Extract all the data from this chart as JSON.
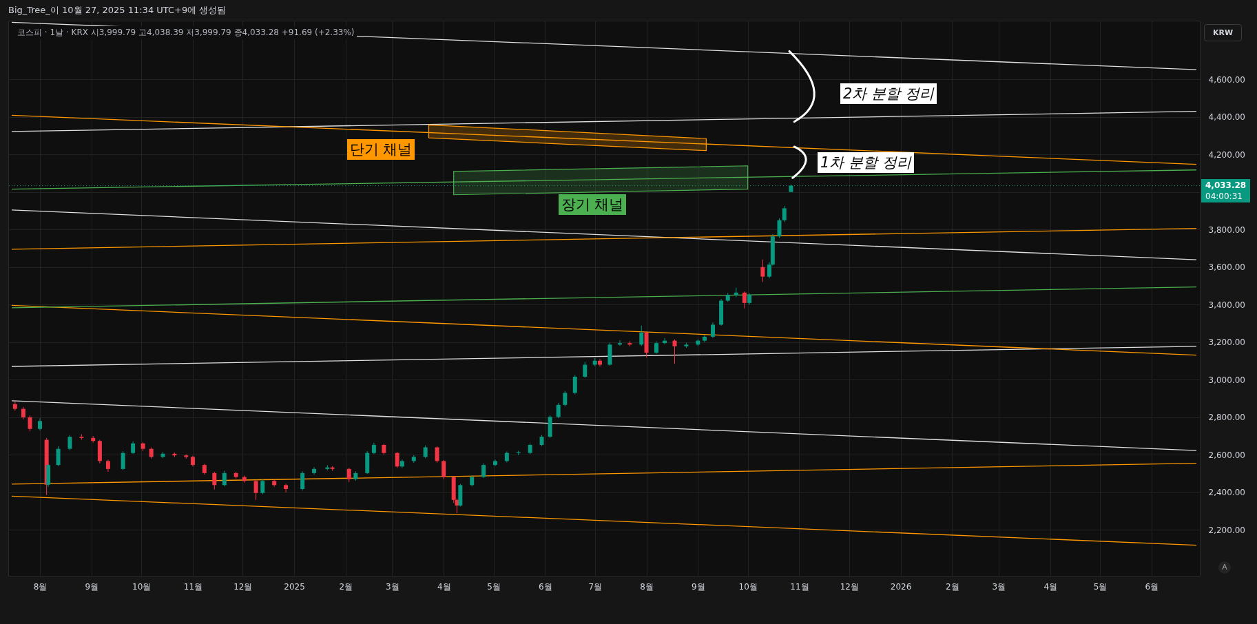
{
  "chart_data": {
    "type": "candlestick",
    "title": "코스피 · 1날 · KRX 시3,999.79 고4,038.39 저3,999.79 종4,033.28 +91.69 (+2.33%)",
    "annotations": [
      "Big_Tree_이 10월 27, 2025 11:34 UTC+9에 생성됨",
      "KRW",
      "A",
      "04:00:31",
      "2차 분할 정리",
      "1차 분할 정리",
      "단기 채널",
      "장기 채널"
    ],
    "x": [
      "2024-07-17",
      "2024-07-22",
      "2024-07-26",
      "2024-08-01",
      "2024-08-05",
      "2024-08-06",
      "2024-08-12",
      "2024-08-19",
      "2024-08-26",
      "2024-09-02",
      "2024-09-06",
      "2024-09-11",
      "2024-09-20",
      "2024-09-26",
      "2024-10-02",
      "2024-10-07",
      "2024-10-14",
      "2024-10-21",
      "2024-10-28",
      "2024-11-01",
      "2024-11-08",
      "2024-11-14",
      "2024-11-20",
      "2024-11-27",
      "2024-12-02",
      "2024-12-09",
      "2024-12-13",
      "2024-12-20",
      "2024-12-27",
      "2025-01-06",
      "2025-01-13",
      "2025-01-21",
      "2025-01-24",
      "2025-02-03",
      "2025-02-07",
      "2025-02-14",
      "2025-02-18",
      "2025-02-24",
      "2025-03-04",
      "2025-03-07",
      "2025-03-14",
      "2025-03-21",
      "2025-03-28",
      "2025-04-01",
      "2025-04-07",
      "2025-04-09",
      "2025-04-11",
      "2025-04-18",
      "2025-04-25",
      "2025-05-02",
      "2025-05-09",
      "2025-05-16",
      "2025-05-23",
      "2025-05-30",
      "2025-06-04",
      "2025-06-09",
      "2025-06-13",
      "2025-06-19",
      "2025-06-25",
      "2025-07-01",
      "2025-07-04",
      "2025-07-10",
      "2025-07-16",
      "2025-07-22",
      "2025-07-29",
      "2025-08-01",
      "2025-08-07",
      "2025-08-12",
      "2025-08-18",
      "2025-08-25",
      "2025-09-01",
      "2025-09-05",
      "2025-09-10",
      "2025-09-15",
      "2025-09-19",
      "2025-09-24",
      "2025-09-29",
      "2025-10-02",
      "2025-10-10",
      "2025-10-14",
      "2025-10-16",
      "2025-10-20",
      "2025-10-23",
      "2025-10-27"
    ],
    "ohlc": [
      [
        2870,
        2885,
        2835,
        2845
      ],
      [
        2845,
        2855,
        2790,
        2800
      ],
      [
        2800,
        2810,
        2725,
        2738
      ],
      [
        2738,
        2795,
        2730,
        2780
      ],
      [
        2680,
        2690,
        2386,
        2441
      ],
      [
        2441,
        2555,
        2430,
        2546
      ],
      [
        2546,
        2645,
        2540,
        2632
      ],
      [
        2632,
        2705,
        2625,
        2696
      ],
      [
        2696,
        2710,
        2680,
        2690
      ],
      [
        2690,
        2700,
        2665,
        2674
      ],
      [
        2674,
        2680,
        2555,
        2567
      ],
      [
        2567,
        2575,
        2510,
        2525
      ],
      [
        2525,
        2620,
        2518,
        2610
      ],
      [
        2610,
        2672,
        2605,
        2661
      ],
      [
        2661,
        2668,
        2620,
        2632
      ],
      [
        2632,
        2640,
        2580,
        2589
      ],
      [
        2589,
        2615,
        2582,
        2606
      ],
      [
        2606,
        2612,
        2588,
        2597
      ],
      [
        2597,
        2603,
        2580,
        2589
      ],
      [
        2589,
        2595,
        2538,
        2546
      ],
      [
        2546,
        2552,
        2495,
        2503
      ],
      [
        2503,
        2510,
        2416,
        2439
      ],
      [
        2439,
        2515,
        2432,
        2503
      ],
      [
        2503,
        2510,
        2474,
        2482
      ],
      [
        2482,
        2490,
        2452,
        2461
      ],
      [
        2461,
        2466,
        2360,
        2397
      ],
      [
        2397,
        2470,
        2390,
        2461
      ],
      [
        2461,
        2468,
        2430,
        2439
      ],
      [
        2439,
        2446,
        2400,
        2418
      ],
      [
        2418,
        2512,
        2410,
        2503
      ],
      [
        2503,
        2535,
        2495,
        2525
      ],
      [
        2525,
        2545,
        2518,
        2533
      ],
      [
        2533,
        2540,
        2515,
        2525
      ],
      [
        2525,
        2530,
        2455,
        2470
      ],
      [
        2470,
        2512,
        2462,
        2503
      ],
      [
        2503,
        2620,
        2498,
        2610
      ],
      [
        2610,
        2665,
        2604,
        2653
      ],
      [
        2653,
        2658,
        2600,
        2610
      ],
      [
        2610,
        2615,
        2530,
        2538
      ],
      [
        2538,
        2575,
        2530,
        2567
      ],
      [
        2567,
        2598,
        2558,
        2589
      ],
      [
        2589,
        2650,
        2582,
        2640
      ],
      [
        2640,
        2646,
        2558,
        2567
      ],
      [
        2567,
        2572,
        2470,
        2482
      ],
      [
        2482,
        2486,
        2345,
        2360
      ],
      [
        2360,
        2368,
        2290,
        2330
      ],
      [
        2330,
        2445,
        2325,
        2439
      ],
      [
        2439,
        2490,
        2432,
        2482
      ],
      [
        2482,
        2555,
        2476,
        2546
      ],
      [
        2546,
        2575,
        2540,
        2567
      ],
      [
        2567,
        2618,
        2560,
        2610
      ],
      [
        2610,
        2622,
        2598,
        2614
      ],
      [
        2610,
        2660,
        2604,
        2653
      ],
      [
        2653,
        2705,
        2645,
        2696
      ],
      [
        2696,
        2812,
        2690,
        2802
      ],
      [
        2802,
        2876,
        2795,
        2866
      ],
      [
        2866,
        2940,
        2858,
        2930
      ],
      [
        2930,
        3025,
        2922,
        3016
      ],
      [
        3016,
        3095,
        3010,
        3080
      ],
      [
        3080,
        3115,
        3072,
        3101
      ],
      [
        3101,
        3110,
        3070,
        3080
      ],
      [
        3080,
        3197,
        3075,
        3187
      ],
      [
        3187,
        3210,
        3180,
        3195
      ],
      [
        3195,
        3205,
        3178,
        3187
      ],
      [
        3187,
        3288,
        3180,
        3251
      ],
      [
        3251,
        3258,
        3119,
        3144
      ],
      [
        3144,
        3205,
        3138,
        3195
      ],
      [
        3195,
        3222,
        3188,
        3208
      ],
      [
        3208,
        3215,
        3085,
        3178
      ],
      [
        3178,
        3196,
        3170,
        3187
      ],
      [
        3187,
        3215,
        3180,
        3208
      ],
      [
        3208,
        3238,
        3200,
        3229
      ],
      [
        3229,
        3305,
        3222,
        3293
      ],
      [
        3293,
        3430,
        3288,
        3421
      ],
      [
        3421,
        3462,
        3415,
        3451
      ],
      [
        3451,
        3490,
        3440,
        3464
      ],
      [
        3464,
        3470,
        3380,
        3409
      ],
      [
        3409,
        3460,
        3400,
        3451
      ],
      [
        3600,
        3640,
        3520,
        3549
      ],
      [
        3549,
        3625,
        3540,
        3613
      ],
      [
        3613,
        3775,
        3608,
        3763
      ],
      [
        3763,
        3860,
        3755,
        3849
      ],
      [
        3849,
        3925,
        3840,
        3913
      ],
      [
        3999.79,
        4038.39,
        3999.79,
        4033.28
      ]
    ],
    "series": [
      {
        "type": "line",
        "color": "#e0e0e0",
        "x": [
          "2024-07-15",
          "2026-06-28"
        ],
        "values": [
          4903,
          4651
        ]
      },
      {
        "type": "line",
        "color": "#e0e0e0",
        "x": [
          "2024-07-15",
          "2026-06-28"
        ],
        "values": [
          4322,
          4429
        ]
      },
      {
        "type": "line",
        "color": "#e0e0e0",
        "x": [
          "2024-07-15",
          "2026-06-28"
        ],
        "values": [
          3904,
          3639
        ]
      },
      {
        "type": "line",
        "color": "#e0e0e0",
        "x": [
          "2024-07-15",
          "2026-06-28"
        ],
        "values": [
          3071,
          3178
        ]
      },
      {
        "type": "line",
        "color": "#e0e0e0",
        "x": [
          "2024-07-15",
          "2026-06-28"
        ],
        "values": [
          2888,
          2623
        ]
      },
      {
        "type": "line",
        "color": "#ff9800",
        "x": [
          "2024-07-15",
          "2026-06-28"
        ],
        "values": [
          4408,
          4147
        ]
      },
      {
        "type": "line",
        "color": "#ff9800",
        "x": [
          "2024-07-15",
          "2026-06-28"
        ],
        "values": [
          3695,
          3806
        ]
      },
      {
        "type": "line",
        "color": "#ff9800",
        "x": [
          "2024-07-15",
          "2026-06-28"
        ],
        "values": [
          3396,
          3131
        ]
      },
      {
        "type": "line",
        "color": "#ff9800",
        "x": [
          "2024-07-15",
          "2026-06-28"
        ],
        "values": [
          2444,
          2555
        ]
      },
      {
        "type": "line",
        "color": "#ff9800",
        "x": [
          "2024-07-15",
          "2026-06-28"
        ],
        "values": [
          2380,
          2119
        ]
      },
      {
        "type": "line",
        "color": "#4caf50",
        "x": [
          "2024-07-15",
          "2026-06-28"
        ],
        "values": [
          4015,
          4117
        ]
      },
      {
        "type": "line",
        "color": "#4caf50",
        "x": [
          "2024-07-15",
          "2026-06-28"
        ],
        "values": [
          3383,
          3494
        ]
      }
    ],
    "ref_lines": [
      {
        "axis": "y",
        "value": 4033.28,
        "label": "4,033.28",
        "color": "#089981",
        "line_style": "dotted"
      }
    ],
    "xlim": [
      "2024-07-15",
      "2026-06-28"
    ],
    "ylim": [
      1956,
      4912
    ],
    "xticks": [
      {
        "value": "2024-08-01",
        "label": "8월"
      },
      {
        "value": "2024-09-01",
        "label": "9월"
      },
      {
        "value": "2024-10-01",
        "label": "10월"
      },
      {
        "value": "2024-11-01",
        "label": "11월"
      },
      {
        "value": "2024-12-01",
        "label": "12월"
      },
      {
        "value": "2025-01-01",
        "label": "2025"
      },
      {
        "value": "2025-02-01",
        "label": "2월"
      },
      {
        "value": "2025-03-01",
        "label": "3월"
      },
      {
        "value": "2025-04-01",
        "label": "4월"
      },
      {
        "value": "2025-05-01",
        "label": "5월"
      },
      {
        "value": "2025-06-01",
        "label": "6월"
      },
      {
        "value": "2025-07-01",
        "label": "7월"
      },
      {
        "value": "2025-08-01",
        "label": "8월"
      },
      {
        "value": "2025-09-01",
        "label": "9월"
      },
      {
        "value": "2025-10-01",
        "label": "10월"
      },
      {
        "value": "2025-11-01",
        "label": "11월"
      },
      {
        "value": "2025-12-01",
        "label": "12월"
      },
      {
        "value": "2026-01-01",
        "label": "2026"
      },
      {
        "value": "2026-02-01",
        "label": "2월"
      },
      {
        "value": "2026-03-01",
        "label": "3월"
      },
      {
        "value": "2026-04-01",
        "label": "4월"
      },
      {
        "value": "2026-05-01",
        "label": "5월"
      },
      {
        "value": "2026-06-01",
        "label": "6월"
      }
    ],
    "yticks": [
      {
        "value": 2200,
        "label": "2,200.00"
      },
      {
        "value": 2400,
        "label": "2,400.00"
      },
      {
        "value": 2600,
        "label": "2,600.00"
      },
      {
        "value": 2800,
        "label": "2,800.00"
      },
      {
        "value": 3000,
        "label": "3,000.00"
      },
      {
        "value": 3200,
        "label": "3,200.00"
      },
      {
        "value": 3400,
        "label": "3,400.00"
      },
      {
        "value": 3600,
        "label": "3,600.00"
      },
      {
        "value": 3800,
        "label": "3,800.00"
      },
      {
        "value": 4000,
        "label": null
      },
      {
        "value": 4200,
        "label": "4,200.00"
      },
      {
        "value": 4400,
        "label": "4,400.00"
      },
      {
        "value": 4600,
        "label": "4,600.00"
      }
    ],
    "grid": true
  }
}
